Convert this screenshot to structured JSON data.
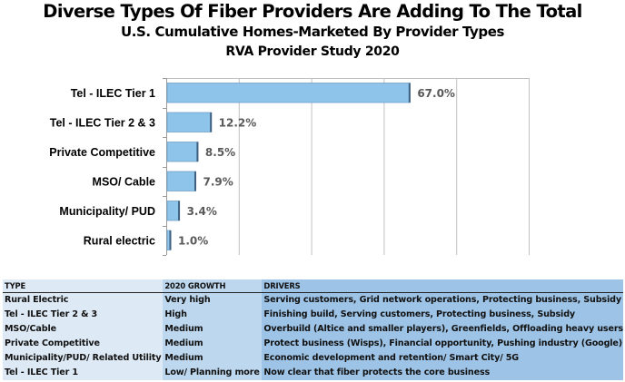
{
  "header": {
    "title": "Diverse Types Of Fiber Providers Are Adding To The Total",
    "subtitle": "U.S. Cumulative Homes-Marketed By Provider Types",
    "source_line": "RVA Provider Study 2020"
  },
  "colors": {
    "bar_fill": "#8ec4ea",
    "bar_edge": "#3e5f7f",
    "grid": "#c0c0c0",
    "value_label": "#595959",
    "table_type_col": "#dde9f5",
    "table_growth_col": "#bdd7ee",
    "table_drivers_col": "#9dc3e6"
  },
  "chart_data": {
    "type": "bar",
    "orientation": "horizontal",
    "title": "U.S. Cumulative Homes-Marketed By Provider Types",
    "categories": [
      "Tel - ILEC Tier 1",
      "Tel - ILEC Tier 2 & 3",
      "Private Competitive",
      "MSO/ Cable",
      "Municipality/ PUD",
      "Rural electric"
    ],
    "values": [
      67.0,
      12.2,
      8.5,
      7.9,
      3.4,
      1.0
    ],
    "value_labels": [
      "67.0%",
      "12.2%",
      "8.5%",
      "7.9%",
      "3.4%",
      "1.0%"
    ],
    "unit": "%",
    "xlim": [
      0,
      100
    ],
    "x_gridlines": [
      0,
      20,
      40,
      60,
      80,
      100
    ],
    "x_tick_labels_shown": false,
    "grid": true,
    "legend": "none",
    "xlabel": "",
    "ylabel": ""
  },
  "table": {
    "headers": [
      "TYPE",
      "2020 GROWTH",
      "DRIVERS"
    ],
    "rows": [
      [
        "Rural Electric",
        "Very high",
        "Serving customers, Grid network operations, Protecting business, Subsidy"
      ],
      [
        "Tel - ILEC Tier 2 & 3",
        "High",
        "Finishing build, Serving customers, Protecting business, Subsidy"
      ],
      [
        "MSO/Cable",
        "Medium",
        "Overbuild (Altice and smaller players), Greenfields, Offloading heavy users"
      ],
      [
        "Private Competitive",
        "Medium",
        "Protect business (Wisps), Financial opportunity, Pushing industry (Google)"
      ],
      [
        "Municipality/PUD/ Related Utility",
        "Medium",
        "Economic development and retention/ Smart City/ 5G"
      ],
      [
        "Tel - ILEC Tier 1",
        "Low/ Planning more",
        "Now clear that fiber protects the core business"
      ]
    ]
  }
}
